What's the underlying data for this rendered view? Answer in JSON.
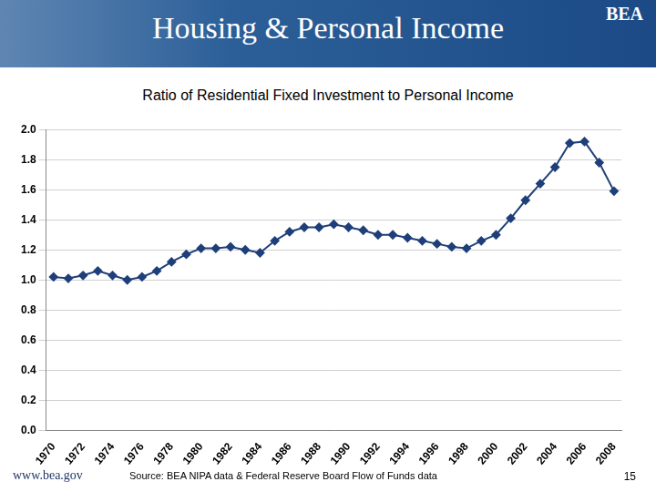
{
  "header": {
    "title": "Housing & Personal Income",
    "logo": "BEA"
  },
  "chart_data": {
    "type": "line",
    "title": "Ratio of Residential Fixed Investment to Personal Income",
    "categories": [
      "1970",
      null,
      "1972",
      null,
      "1974",
      null,
      "1976",
      null,
      "1978",
      null,
      "1980",
      null,
      "1982",
      null,
      "1984",
      null,
      "1986",
      null,
      "1988",
      null,
      "1990",
      null,
      "1992",
      null,
      "1994",
      null,
      "1996",
      null,
      "1998",
      null,
      "2000",
      null,
      "2002",
      null,
      "2004",
      null,
      "2006",
      null,
      "2008"
    ],
    "values": [
      1.02,
      1.01,
      1.03,
      1.06,
      1.03,
      1.0,
      1.02,
      1.06,
      1.12,
      1.17,
      1.21,
      1.21,
      1.22,
      1.2,
      1.18,
      1.26,
      1.32,
      1.35,
      1.35,
      1.37,
      1.35,
      1.33,
      1.3,
      1.3,
      1.28,
      1.26,
      1.24,
      1.22,
      1.21,
      1.26,
      1.3,
      1.41,
      1.53,
      1.64,
      1.75,
      1.91,
      1.92,
      1.78,
      1.59
    ],
    "color": "#1f3f7a",
    "marker": "diamond",
    "ylim": [
      0,
      2
    ],
    "yticks": [
      {
        "value": 0,
        "label": "0.0"
      },
      0.2,
      0.4,
      0.6,
      0.8,
      {
        "value": 1,
        "label": "1.0"
      },
      1.2,
      1.4,
      1.6,
      1.8,
      {
        "value": 2,
        "label": "2.0"
      }
    ],
    "grid": true
  },
  "footer": {
    "url": "www.bea.gov",
    "source": "Source: BEA NIPA data & Federal Reserve Board Flow of Funds data",
    "page": "15"
  }
}
